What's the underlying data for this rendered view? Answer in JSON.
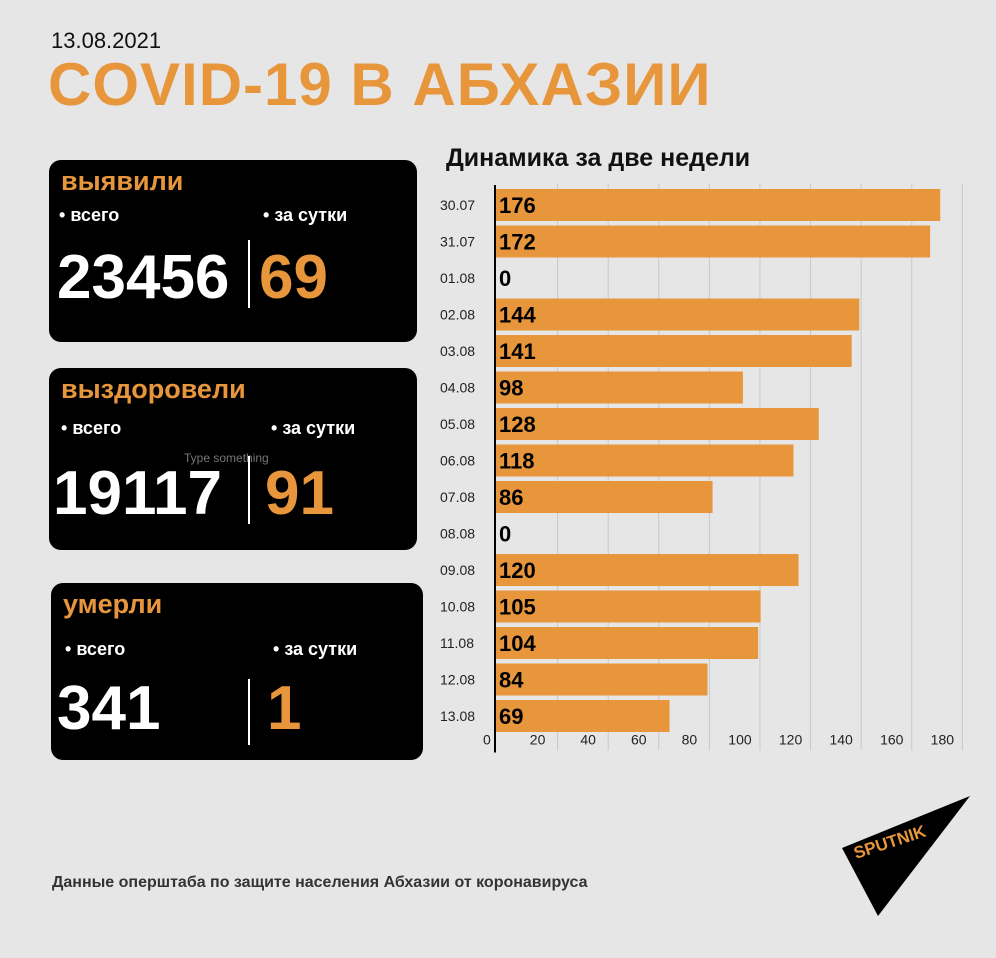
{
  "header": {
    "date": "13.08.2021",
    "title": "COVID-19 В АБХАЗИИ"
  },
  "cards": {
    "detected": {
      "heading": "выявили",
      "total_label": "всего",
      "day_label": "за сутки",
      "total": "23456",
      "day": "69"
    },
    "recovered": {
      "heading": "выздоровели",
      "total_label": "всего",
      "day_label": "за сутки",
      "total": "19117",
      "day": "91",
      "placeholder_text": "Type something"
    },
    "died": {
      "heading": "умерли",
      "total_label": "всего",
      "day_label": "за сутки",
      "total": "341",
      "day": "1"
    }
  },
  "chart_title": "Динамика за две недели",
  "chart_data": {
    "type": "bar",
    "orientation": "horizontal",
    "categories": [
      "30.07",
      "31.07",
      "01.08",
      "02.08",
      "03.08",
      "04.08",
      "05.08",
      "06.08",
      "07.08",
      "08.08",
      "09.08",
      "10.08",
      "11.08",
      "12.08",
      "13.08"
    ],
    "values": [
      176,
      172,
      0,
      144,
      141,
      98,
      128,
      118,
      86,
      0,
      120,
      105,
      104,
      84,
      69
    ],
    "xlim": [
      0,
      180
    ],
    "xticks": [
      0,
      20,
      40,
      60,
      80,
      100,
      120,
      140,
      160,
      180
    ],
    "grid": true,
    "bar_color": "#e8963c"
  },
  "source": "Данные оперштаба по защите населения Абхазии от коронавируса",
  "logo": {
    "text": "SPUTNIK",
    "color": "#e8963c"
  }
}
